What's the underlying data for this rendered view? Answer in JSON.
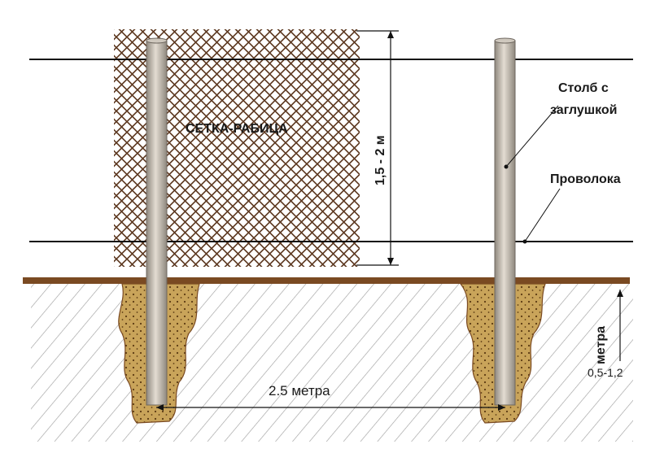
{
  "labels": {
    "mesh": "СЕТКА-РАБИЦА",
    "post_line1": "Столб с",
    "post_line2": "заглушкой",
    "wire": "Проволока",
    "height": "1,5 - 2 м",
    "spacing": "2.5 метра",
    "depth_unit": "метра",
    "depth_value": "0,5-1,2"
  },
  "colors": {
    "ground": "#7a4a22",
    "soil_hatch": "#a0a0a0",
    "concrete": "#c9a45a",
    "concrete_dots": "#5a3a12",
    "mesh": "#5e3a22",
    "wire": "#111111",
    "post_light": "#e3dcd2",
    "post_dark": "#8f887e"
  }
}
